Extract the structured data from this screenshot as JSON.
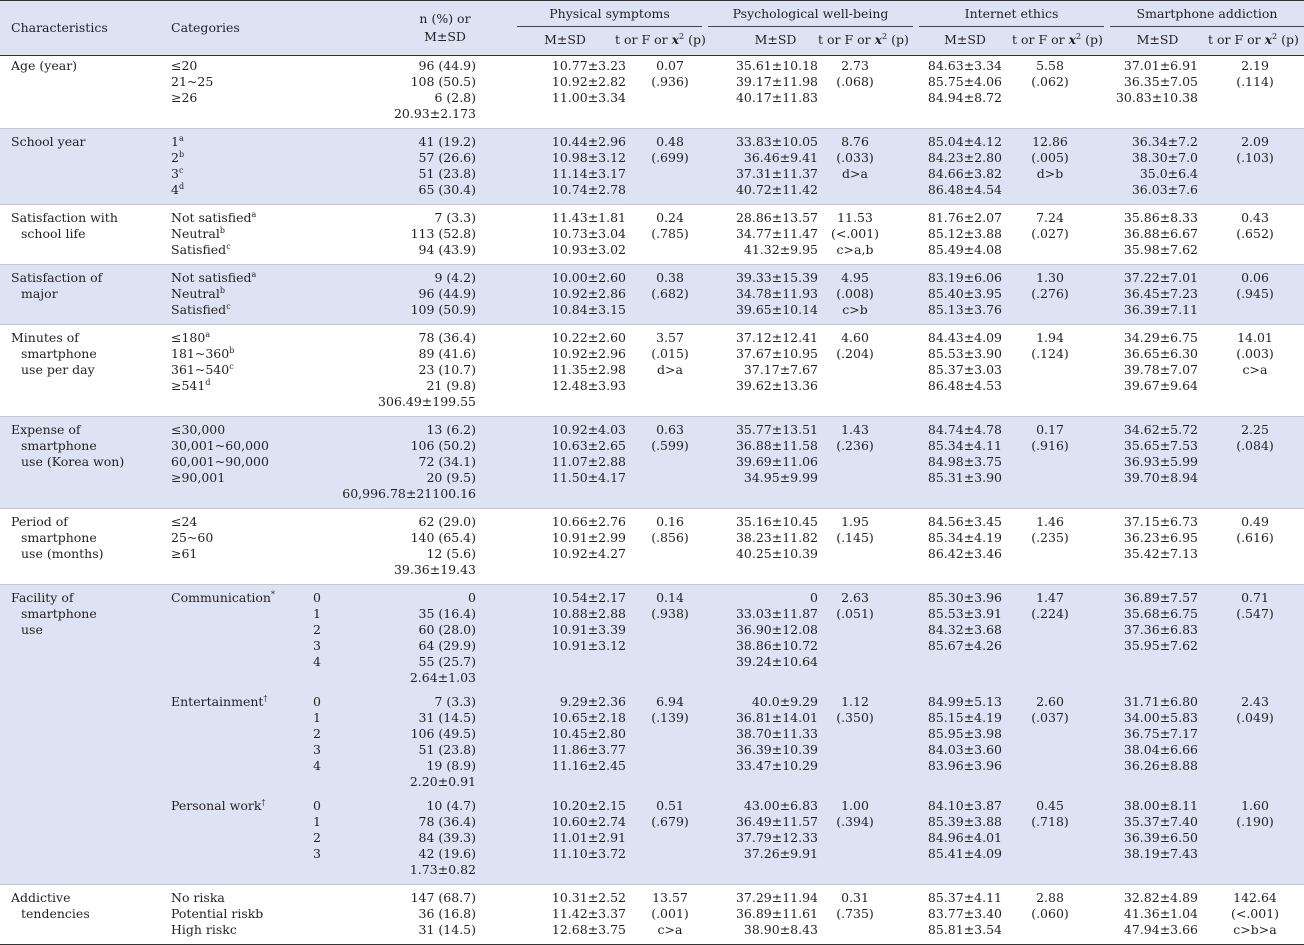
{
  "header": {
    "characteristics": "Characteristics",
    "categories": "Categories",
    "n_line1": "n (%) or",
    "n_line2": "M±SD",
    "groups": [
      "Physical symptoms",
      "Psychological well-being",
      "Internet ethics",
      "Smartphone addiction"
    ],
    "msd": "M±SD",
    "stat_prefix": "t or F or ",
    "chi": "x",
    "chi_sup": "2",
    "p": " (p)"
  },
  "sections": [
    {
      "label": [
        "Age (year)"
      ],
      "band": false,
      "rows": [
        {
          "cat": "≤20",
          "n": "96 (44.9)",
          "ps": "10.77±3.23",
          "pst": "0.07",
          "pw": "35.61±10.18",
          "pwt": "2.73",
          "ie": "84.63±3.34",
          "iet": "5.58",
          "sa": "37.01±6.91",
          "sat": "2.19"
        },
        {
          "cat": "21~25",
          "n": "108 (50.5)",
          "ps": "10.92±2.82",
          "pst": "(.936)",
          "pw": "39.17±11.98",
          "pwt": "(.068)",
          "ie": "85.75±4.06",
          "iet": "(.062)",
          "sa": "36.35±7.05",
          "sat": "(.114)"
        },
        {
          "cat": "≥26",
          "n": "6 (2.8)",
          "ps": "11.00±3.34",
          "pw": "40.17±11.83",
          "ie": "84.94±8.72",
          "sa": "30.83±10.38"
        },
        {
          "n": "20.93±2.173"
        }
      ]
    },
    {
      "label": [
        "School year"
      ],
      "band": true,
      "rows": [
        {
          "cat": "1",
          "sup": "a",
          "n": "41 (19.2)",
          "ps": "10.44±2.96",
          "pst": "0.48",
          "pw": "33.83±10.05",
          "pwt": "8.76",
          "ie": "85.04±4.12",
          "iet": "12.86",
          "sa": "36.34±7.2",
          "sat": "2.09"
        },
        {
          "cat": "2",
          "sup": "b",
          "n": "57 (26.6)",
          "ps": "10.98±3.12",
          "pst": "(.699)",
          "pw": "36.46±9.41",
          "pwt": "(.033)",
          "ie": "84.23±2.80",
          "iet": "(.005)",
          "sa": "38.30±7.0",
          "sat": "(.103)"
        },
        {
          "cat": "3",
          "sup": "c",
          "n": "51 (23.8)",
          "ps": "11.14±3.17",
          "pw": "37.31±11.37",
          "pwt": "d>a",
          "ie": "84.66±3.82",
          "iet": "d>b",
          "sa": "35.0±6.4"
        },
        {
          "cat": "4",
          "sup": "d",
          "n": "65 (30.4)",
          "ps": "10.74±2.78",
          "pw": "40.72±11.42",
          "ie": "86.48±4.54",
          "sa": "36.03±7.6"
        }
      ]
    },
    {
      "label": [
        "Satisfaction with",
        "school life"
      ],
      "band": false,
      "rows": [
        {
          "cat": "Not satisfied",
          "sup": "a",
          "n": "7 (3.3)",
          "ps": "11.43±1.81",
          "pst": "0.24",
          "pw": "28.86±13.57",
          "pwt": "11.53",
          "ie": "81.76±2.07",
          "iet": "7.24",
          "sa": "35.86±8.33",
          "sat": "0.43"
        },
        {
          "cat": "Neutral",
          "sup": "b",
          "n": "113 (52.8)",
          "ps": "10.73±3.04",
          "pst": "(.785)",
          "pw": "34.77±11.47",
          "pwt": "(<.001)",
          "ie": "85.12±3.88",
          "iet": "(.027)",
          "sa": "36.88±6.67",
          "sat": "(.652)"
        },
        {
          "cat": "Satisfied",
          "sup": "c",
          "n": "94 (43.9)",
          "ps": "10.93±3.02",
          "pw": "41.32±9.95",
          "pwt": "c>a,b",
          "ie": "85.49±4.08",
          "sa": "35.98±7.62"
        }
      ]
    },
    {
      "label": [
        "Satisfaction of",
        "major"
      ],
      "band": true,
      "rows": [
        {
          "cat": "Not satisfied",
          "sup": "a",
          "n": "9 (4.2)",
          "ps": "10.00±2.60",
          "pst": "0.38",
          "pw": "39.33±15.39",
          "pwt": "4.95",
          "ie": "83.19±6.06",
          "iet": "1.30",
          "sa": "37.22±7.01",
          "sat": "0.06"
        },
        {
          "cat": "Neutral",
          "sup": "b",
          "n": "96 (44.9)",
          "ps": "10.92±2.86",
          "pst": "(.682)",
          "pw": "34.78±11.93",
          "pwt": "(.008)",
          "ie": "85.40±3.95",
          "iet": "(.276)",
          "sa": "36.45±7.23",
          "sat": "(.945)"
        },
        {
          "cat": "Satisfied",
          "sup": "c",
          "n": "109 (50.9)",
          "ps": "10.84±3.15",
          "pw": "39.65±10.14",
          "pwt": "c>b",
          "ie": "85.13±3.76",
          "sa": "36.39±7.11"
        }
      ]
    },
    {
      "label": [
        "Minutes of",
        "smartphone",
        "use per day"
      ],
      "band": false,
      "rows": [
        {
          "cat": "≤180",
          "sup": "a",
          "n": "78 (36.4)",
          "ps": "10.22±2.60",
          "pst": "3.57",
          "pw": "37.12±12.41",
          "pwt": "4.60",
          "ie": "84.43±4.09",
          "iet": "1.94",
          "sa": "34.29±6.75",
          "sat": "14.01"
        },
        {
          "cat": "181~360",
          "sup": "b",
          "n": "89 (41.6)",
          "ps": "10.92±2.96",
          "pst": "(.015)",
          "pw": "37.67±10.95",
          "pwt": "(.204)",
          "ie": "85.53±3.90",
          "iet": "(.124)",
          "sa": "36.65±6.30",
          "sat": "(.003)"
        },
        {
          "cat": "361~540",
          "sup": "c",
          "n": "23 (10.7)",
          "ps": "11.35±2.98",
          "pst": "d>a",
          "pw": "37.17±7.67",
          "ie": "85.37±3.03",
          "sa": "39.78±7.07",
          "sat": "c>a"
        },
        {
          "cat": "≥541",
          "sup": "d",
          "n": "21 (9.8)",
          "ps": "12.48±3.93",
          "pw": "39.62±13.36",
          "ie": "86.48±4.53",
          "sa": "39.67±9.64"
        },
        {
          "n": "306.49±199.55"
        }
      ]
    },
    {
      "label": [
        "Expense of",
        "smartphone",
        "use (Korea won)"
      ],
      "band": true,
      "rows": [
        {
          "cat": "≤30,000",
          "n": "13 (6.2)",
          "ps": "10.92±4.03",
          "pst": "0.63",
          "pw": "35.77±13.51",
          "pwt": "1.43",
          "ie": "84.74±4.78",
          "iet": "0.17",
          "sa": "34.62±5.72",
          "sat": "2.25"
        },
        {
          "cat": "30,001~60,000",
          "n": "106 (50.2)",
          "ps": "10.63±2.65",
          "pst": "(.599)",
          "pw": "36.88±11.58",
          "pwt": "(.236)",
          "ie": "85.34±4.11",
          "iet": "(.916)",
          "sa": "35.65±7.53",
          "sat": "(.084)"
        },
        {
          "cat": "60,001~90,000",
          "n": "72 (34.1)",
          "ps": "11.07±2.88",
          "pw": "39.69±11.06",
          "ie": "84.98±3.75",
          "sa": "36.93±5.99"
        },
        {
          "cat": "≥90,001",
          "n": "20 (9.5)",
          "ps": "11.50±4.17",
          "pw": "34.95±9.99",
          "ie": "85.31±3.90",
          "sa": "39.70±8.94"
        },
        {
          "n": "60,996.78±21100.16"
        }
      ]
    },
    {
      "label": [
        "Period of",
        "smartphone",
        "use (months)"
      ],
      "band": false,
      "rows": [
        {
          "cat": "≤24",
          "n": "62 (29.0)",
          "ps": "10.66±2.76",
          "pst": "0.16",
          "pw": "35.16±10.45",
          "pwt": "1.95",
          "ie": "84.56±3.45",
          "iet": "1.46",
          "sa": "37.15±6.73",
          "sat": "0.49"
        },
        {
          "cat": "25~60",
          "n": "140 (65.4)",
          "ps": "10.91±2.99",
          "pst": "(.856)",
          "pw": "38.23±11.82",
          "pwt": "(.145)",
          "ie": "85.34±4.19",
          "iet": "(.235)",
          "sa": "36.23±6.95",
          "sat": "(.616)"
        },
        {
          "cat": "≥61",
          "n": "12 (5.6)",
          "ps": "10.92±4.27",
          "pw": "40.25±10.39",
          "ie": "86.42±3.46",
          "sa": "35.42±7.13"
        },
        {
          "n": "39.36±19.43"
        }
      ]
    },
    {
      "label": [
        "Facility of",
        "smartphone",
        "use"
      ],
      "band": true,
      "groups": [
        {
          "name": "Communication",
          "sup": "*",
          "rows": [
            {
              "lvl": "0",
              "n": "0",
              "ps": "10.54±2.17",
              "pst": "0.14",
              "pw": "0",
              "pwt": "2.63",
              "ie": "85.30±3.96",
              "iet": "1.47",
              "sa": "36.89±7.57",
              "sat": "0.71"
            },
            {
              "lvl": "1",
              "n": "35 (16.4)",
              "ps": "10.88±2.88",
              "pst": "(.938)",
              "pw": "33.03±11.87",
              "pwt": "(.051)",
              "ie": "85.53±3.91",
              "iet": "(.224)",
              "sa": "35.68±6.75",
              "sat": "(.547)"
            },
            {
              "lvl": "2",
              "n": "60 (28.0)",
              "ps": "10.91±3.39",
              "pw": "36.90±12.08",
              "ie": "84.32±3.68",
              "sa": "37.36±6.83"
            },
            {
              "lvl": "3",
              "n": "64 (29.9)",
              "ps": "10.91±3.12",
              "pw": "38.86±10.72",
              "ie": "85.67±4.26",
              "sa": "35.95±7.62"
            },
            {
              "lvl": "4",
              "n": "55 (25.7)",
              "pw": "39.24±10.64"
            },
            {
              "n": "2.64±1.03"
            }
          ]
        },
        {
          "name": "Entertainment",
          "sup": "†",
          "rows": [
            {
              "lvl": "0",
              "n": "7 (3.3)",
              "ps": "9.29±2.36",
              "pst": "6.94",
              "pw": "40.0±9.29",
              "pwt": "1.12",
              "ie": "84.99±5.13",
              "iet": "2.60",
              "sa": "31.71±6.80",
              "sat": "2.43"
            },
            {
              "lvl": "1",
              "n": "31 (14.5)",
              "ps": "10.65±2.18",
              "pst": "(.139)",
              "pw": "36.81±14.01",
              "pwt": "(.350)",
              "ie": "85.15±4.19",
              "iet": "(.037)",
              "sa": "34.00±5.83",
              "sat": "(.049)"
            },
            {
              "lvl": "2",
              "n": "106 (49.5)",
              "ps": "10.45±2.80",
              "pw": "38.70±11.33",
              "ie": "85.95±3.98",
              "sa": "36.75±7.17"
            },
            {
              "lvl": "3",
              "n": "51 (23.8)",
              "ps": "11.86±3.77",
              "pw": "36.39±10.39",
              "ie": "84.03±3.60",
              "sa": "38.04±6.66"
            },
            {
              "lvl": "4",
              "n": "19 (8.9)",
              "ps": "11.16±2.45",
              "pw": "33.47±10.29",
              "ie": "83.96±3.96",
              "sa": "36.26±8.88"
            },
            {
              "n": "2.20±0.91"
            }
          ]
        },
        {
          "name": "Personal work",
          "sup": "†",
          "rows": [
            {
              "lvl": "0",
              "n": "10 (4.7)",
              "ps": "10.20±2.15",
              "pst": "0.51",
              "pw": "43.00±6.83",
              "pwt": "1.00",
              "ie": "84.10±3.87",
              "iet": "0.45",
              "sa": "38.00±8.11",
              "sat": "1.60"
            },
            {
              "lvl": "1",
              "n": "78 (36.4)",
              "ps": "10.60±2.74",
              "pst": "(.679)",
              "pw": "36.49±11.57",
              "pwt": "(.394)",
              "ie": "85.39±3.88",
              "iet": "(.718)",
              "sa": "35.37±7.40",
              "sat": "(.190)"
            },
            {
              "lvl": "2",
              "n": "84 (39.3)",
              "ps": "11.01±2.91",
              "pw": "37.79±12.33",
              "ie": "84.96±4.01",
              "sa": "36.39±6.50"
            },
            {
              "lvl": "3",
              "n": "42 (19.6)",
              "ps": "11.10±3.72",
              "pw": "37.26±9.91",
              "ie": "85.41±4.09",
              "sa": "38.19±7.43"
            },
            {
              "n": "1.73±0.82"
            }
          ]
        }
      ]
    },
    {
      "label": [
        "Addictive",
        "tendencies"
      ],
      "band": false,
      "rows": [
        {
          "cat": "No riska",
          "n": "147 (68.7)",
          "ps": "10.31±2.52",
          "pst": "13.57",
          "pw": "37.29±11.94",
          "pwt": "0.31",
          "ie": "85.37±4.11",
          "iet": "2.88",
          "sa": "32.82±4.89",
          "sat": "142.64"
        },
        {
          "cat": "Potential riskb",
          "n": "36 (16.8)",
          "ps": "11.42±3.37",
          "pst": "(.001)",
          "pw": "36.89±11.61",
          "pwt": "(.735)",
          "ie": "83.77±3.40",
          "iet": "(.060)",
          "sa": "41.36±1.04",
          "sat": "(<.001)"
        },
        {
          "cat": "High riskc",
          "n": "31 (14.5)",
          "ps": "12.68±3.75",
          "pst": "c>a",
          "pw": "38.90±8.43",
          "ie": "85.81±3.54",
          "sa": "47.94±3.66",
          "sat": "c>b>a"
        }
      ]
    }
  ]
}
